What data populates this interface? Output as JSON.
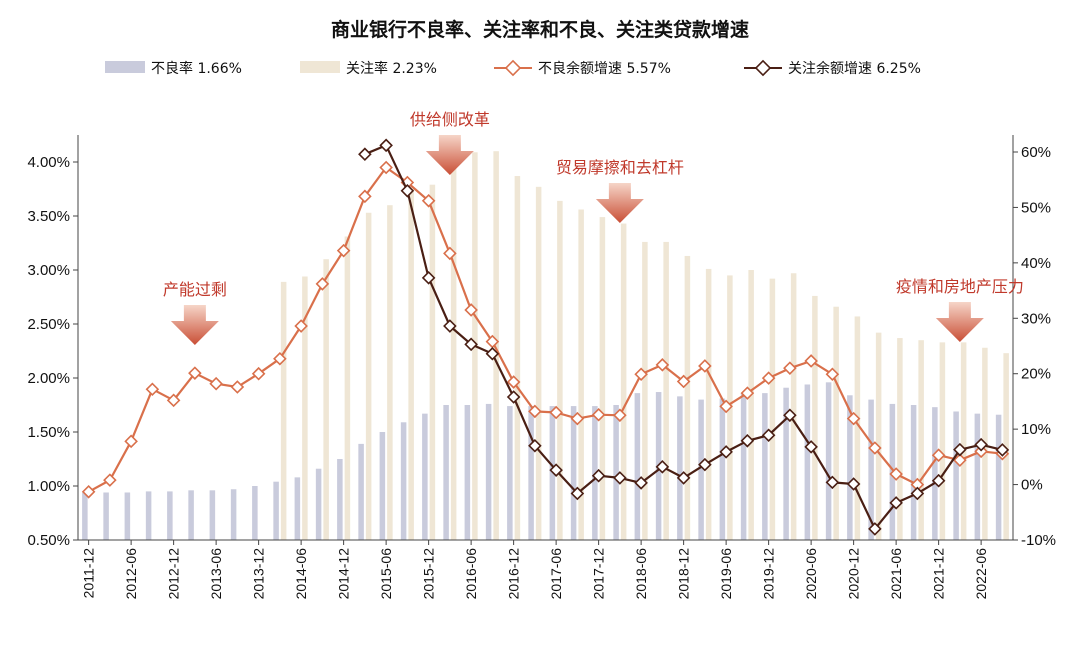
{
  "chart_data": {
    "type": "bar",
    "title": "商业银行不良率、关注率和不良、关注类贷款增速",
    "legend": [
      {
        "name": "不良率",
        "value": "1.66%",
        "color": "#c9cbdc",
        "kind": "bar"
      },
      {
        "name": "关注率",
        "value": "2.23%",
        "color": "#efe6d5",
        "kind": "bar"
      },
      {
        "name": "不良余额增速",
        "value": "5.57%",
        "color": "#d9704b",
        "kind": "line"
      },
      {
        "name": "关注余额增速",
        "value": "6.25%",
        "color": "#4a1f14",
        "kind": "line"
      }
    ],
    "x_tick_labels": [
      "2011-12",
      "2012-06",
      "2012-12",
      "2013-06",
      "2013-12",
      "2014-06",
      "2014-12",
      "2015-06",
      "2015-12",
      "2016-06",
      "2016-12",
      "2017-06",
      "2017-12",
      "2018-06",
      "2018-12",
      "2019-06",
      "2019-12",
      "2020-06",
      "2020-12",
      "2021-06",
      "2021-12",
      "2022-06"
    ],
    "left_axis": {
      "min": 0.5,
      "max": 4.0,
      "ticks": [
        "0.50%",
        "1.00%",
        "1.50%",
        "2.00%",
        "2.50%",
        "3.00%",
        "3.50%",
        "4.00%"
      ]
    },
    "right_axis": {
      "min": -10,
      "max": 60,
      "ticks": [
        "-10%",
        "0%",
        "10%",
        "20%",
        "30%",
        "40%",
        "50%",
        "60%"
      ]
    },
    "x": [
      "2011-12",
      "2012-03",
      "2012-06",
      "2012-09",
      "2012-12",
      "2013-03",
      "2013-06",
      "2013-09",
      "2013-12",
      "2014-03",
      "2014-06",
      "2014-09",
      "2014-12",
      "2015-03",
      "2015-06",
      "2015-09",
      "2015-12",
      "2016-03",
      "2016-06",
      "2016-09",
      "2016-12",
      "2017-03",
      "2017-06",
      "2017-09",
      "2017-12",
      "2018-03",
      "2018-06",
      "2018-09",
      "2018-12",
      "2019-03",
      "2019-06",
      "2019-09",
      "2019-12",
      "2020-03",
      "2020-06",
      "2020-09",
      "2020-12",
      "2021-03",
      "2021-06",
      "2021-09",
      "2021-12",
      "2022-03",
      "2022-06",
      "2022-09"
    ],
    "npl_ratio": [
      0.94,
      0.94,
      0.94,
      0.95,
      0.95,
      0.96,
      0.96,
      0.97,
      1.0,
      1.04,
      1.08,
      1.16,
      1.25,
      1.39,
      1.5,
      1.59,
      1.67,
      1.75,
      1.75,
      1.76,
      1.74,
      1.74,
      1.74,
      1.74,
      1.74,
      1.75,
      1.86,
      1.87,
      1.83,
      1.8,
      1.81,
      1.86,
      1.86,
      1.91,
      1.94,
      1.96,
      1.84,
      1.8,
      1.76,
      1.75,
      1.73,
      1.69,
      1.67,
      1.66
    ],
    "sm_ratio": [
      null,
      null,
      null,
      null,
      null,
      null,
      null,
      null,
      null,
      2.89,
      2.94,
      3.1,
      3.31,
      3.53,
      3.6,
      3.75,
      3.79,
      3.96,
      4.09,
      4.1,
      3.87,
      3.77,
      3.64,
      3.56,
      3.49,
      3.43,
      3.26,
      3.26,
      3.13,
      3.01,
      2.95,
      3.0,
      2.92,
      2.97,
      2.76,
      2.66,
      2.57,
      2.42,
      2.37,
      2.35,
      2.33,
      2.33,
      2.28,
      2.23
    ],
    "npl_growth": [
      -1.3,
      0.8,
      7.8,
      17.2,
      15.2,
      20.1,
      18.2,
      17.6,
      20.0,
      22.7,
      28.6,
      36.2,
      42.2,
      52.0,
      57.2,
      54.5,
      51.2,
      41.7,
      31.5,
      25.8,
      18.5,
      13.2,
      13.0,
      11.9,
      12.6,
      12.5,
      19.9,
      21.6,
      18.6,
      21.4,
      14.1,
      16.5,
      19.2,
      21.0,
      22.3,
      19.9,
      11.9,
      6.6,
      1.9,
      0.0,
      5.3,
      4.4,
      6.0,
      5.57
    ],
    "sm_growth": [
      null,
      null,
      null,
      null,
      null,
      null,
      null,
      null,
      null,
      null,
      null,
      null,
      null,
      59.6,
      61.2,
      53.0,
      37.3,
      28.6,
      25.3,
      23.6,
      15.8,
      7.0,
      2.6,
      -1.6,
      1.6,
      1.2,
      0.3,
      3.2,
      1.2,
      3.6,
      5.9,
      7.9,
      8.9,
      12.5,
      6.8,
      0.4,
      0.1,
      -8.0,
      -3.3,
      -1.6,
      0.7,
      6.3,
      7.2,
      6.25
    ],
    "annotations": [
      {
        "text": "产能过剩",
        "at": "2013-03"
      },
      {
        "text": "供给侧改革",
        "at": "2016-03"
      },
      {
        "text": "贸易摩擦和去杠杆",
        "at": "2018-03"
      },
      {
        "text": "疫情和房地产压力",
        "at": "2022-03"
      }
    ]
  }
}
